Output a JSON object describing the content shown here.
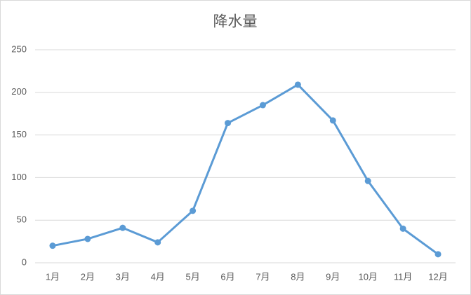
{
  "chart_data": {
    "type": "line",
    "title": "降水量",
    "categories": [
      "1月",
      "2月",
      "3月",
      "4月",
      "5月",
      "6月",
      "7月",
      "8月",
      "9月",
      "10月",
      "11月",
      "12月"
    ],
    "series": [
      {
        "name": "降水量",
        "color": "#5b9bd5",
        "values": [
          20,
          28,
          41,
          24,
          61,
          164,
          185,
          209,
          167,
          96,
          40,
          10
        ]
      }
    ],
    "ylim": [
      0,
      250
    ],
    "yticks": [
      0,
      50,
      100,
      150,
      200,
      250
    ],
    "grid": true
  }
}
